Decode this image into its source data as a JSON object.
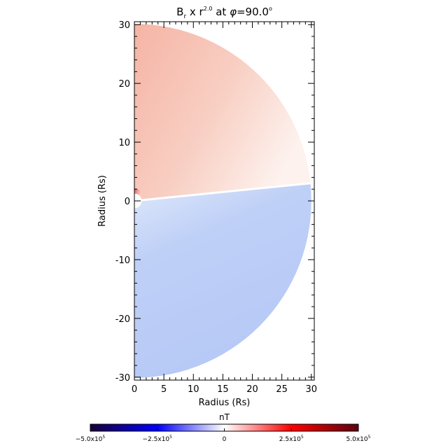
{
  "chart_data": {
    "type": "heatmap",
    "title": {
      "prefix": "B",
      "sub": "r",
      "mid": " x r",
      "exp": "2.0",
      "tail": " at ",
      "phi": "φ",
      "angle": "=90.0",
      "deg": "o"
    },
    "xlabel": "Radius (Rs)",
    "ylabel": "Radius (Rs)",
    "xlim": [
      0,
      30.5
    ],
    "ylim": [
      -30.5,
      30.5
    ],
    "x_ticks": [
      0,
      5,
      10,
      15,
      20,
      25,
      30
    ],
    "y_ticks": [
      -30,
      -20,
      -10,
      0,
      10,
      20,
      30
    ],
    "domain_outer_radius": 30,
    "domain_inner_radius": 1,
    "current_sheet_y_at_edge": 3,
    "northern_hemisphere": {
      "sign": "positive",
      "color": "#f7c2b3"
    },
    "southern_hemisphere": {
      "sign": "negative",
      "color": "#b9cbf6"
    },
    "colorbar": {
      "label": "nT",
      "range": [
        -500000,
        500000
      ],
      "tick_labels": [
        {
          "value": -500000,
          "mant": "−5.0x10",
          "exp": "5"
        },
        {
          "value": -250000,
          "mant": "−2.5x10",
          "exp": "5"
        },
        {
          "value": 0,
          "mant": "0",
          "exp": ""
        },
        {
          "value": 250000,
          "mant": "2.5x10",
          "exp": "5"
        },
        {
          "value": 500000,
          "mant": "5.0x10",
          "exp": "5"
        }
      ],
      "colors": [
        "#1a0038",
        "#0000ff",
        "#ffffff",
        "#ff0000",
        "#5c0010"
      ]
    }
  }
}
